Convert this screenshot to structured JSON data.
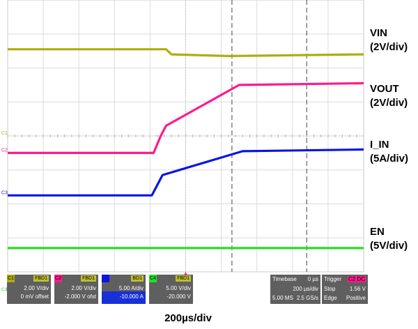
{
  "chart_data": {
    "type": "line",
    "xlabel": "200µs/div",
    "x_divisions": 10,
    "y_divisions": 8,
    "grid": true,
    "series": [
      {
        "name": "VIN",
        "scale": "(2V/div)",
        "color": "#b0ac10",
        "x": [
          0,
          4.45,
          4.6,
          6.2,
          10
        ],
        "y": [
          2.55,
          2.55,
          2.4,
          2.35,
          2.4
        ]
      },
      {
        "name": "VOUT",
        "scale": "(2V/div)",
        "color": "#ff1a8c",
        "x": [
          0,
          4.1,
          4.3,
          4.45,
          6.5,
          10
        ],
        "y": [
          -0.5,
          -0.5,
          0.0,
          0.3,
          1.5,
          1.55
        ]
      },
      {
        "name": "I_IN",
        "scale": "(5A/div)",
        "color": "#0a14e6",
        "x": [
          0,
          4.05,
          4.35,
          6.6,
          10
        ],
        "y": [
          -1.75,
          -1.75,
          -1.15,
          -0.45,
          -0.4
        ]
      },
      {
        "name": "EN",
        "scale": "(5V/div)",
        "color": "#22e022",
        "x": [
          0,
          10
        ],
        "y": [
          -3.3,
          -3.3
        ]
      }
    ],
    "cursor_x": [
      6.3,
      8.4
    ]
  },
  "markers": {
    "c1": "C1",
    "c2": "C2",
    "c3": "C3",
    "c4": "C4"
  },
  "channels": [
    {
      "tag": "C1",
      "sw": "FBD1",
      "line1": "2.00 V/div",
      "line2": "0 mV offset",
      "color": "#b0ac10"
    },
    {
      "tag": "C2",
      "sw": "FBD1",
      "line1": "2.00 V/div",
      "line2": "-2.000 V ofst",
      "color": "#ff1a8c"
    },
    {
      "tag": "C3",
      "sw": "BD1",
      "line1": "5.00 A/div",
      "line2": "-10.000 A",
      "color": "#0a14e6"
    },
    {
      "tag": "C4",
      "sw": "FBD1",
      "line1": "5.00 V/div",
      "line2": "-20.000 V",
      "color": "#22e022"
    }
  ],
  "timebase": {
    "title": "Timebase",
    "offset": "0 µs",
    "per_div": "200 µs/div",
    "samples": "5.00 MS",
    "rate": "2.5 GS/s"
  },
  "trigger": {
    "title": "Trigger",
    "chan": "C2 DC",
    "mode": "Stop",
    "level": "1.56 V",
    "type": "Edge",
    "slope": "Positive"
  }
}
